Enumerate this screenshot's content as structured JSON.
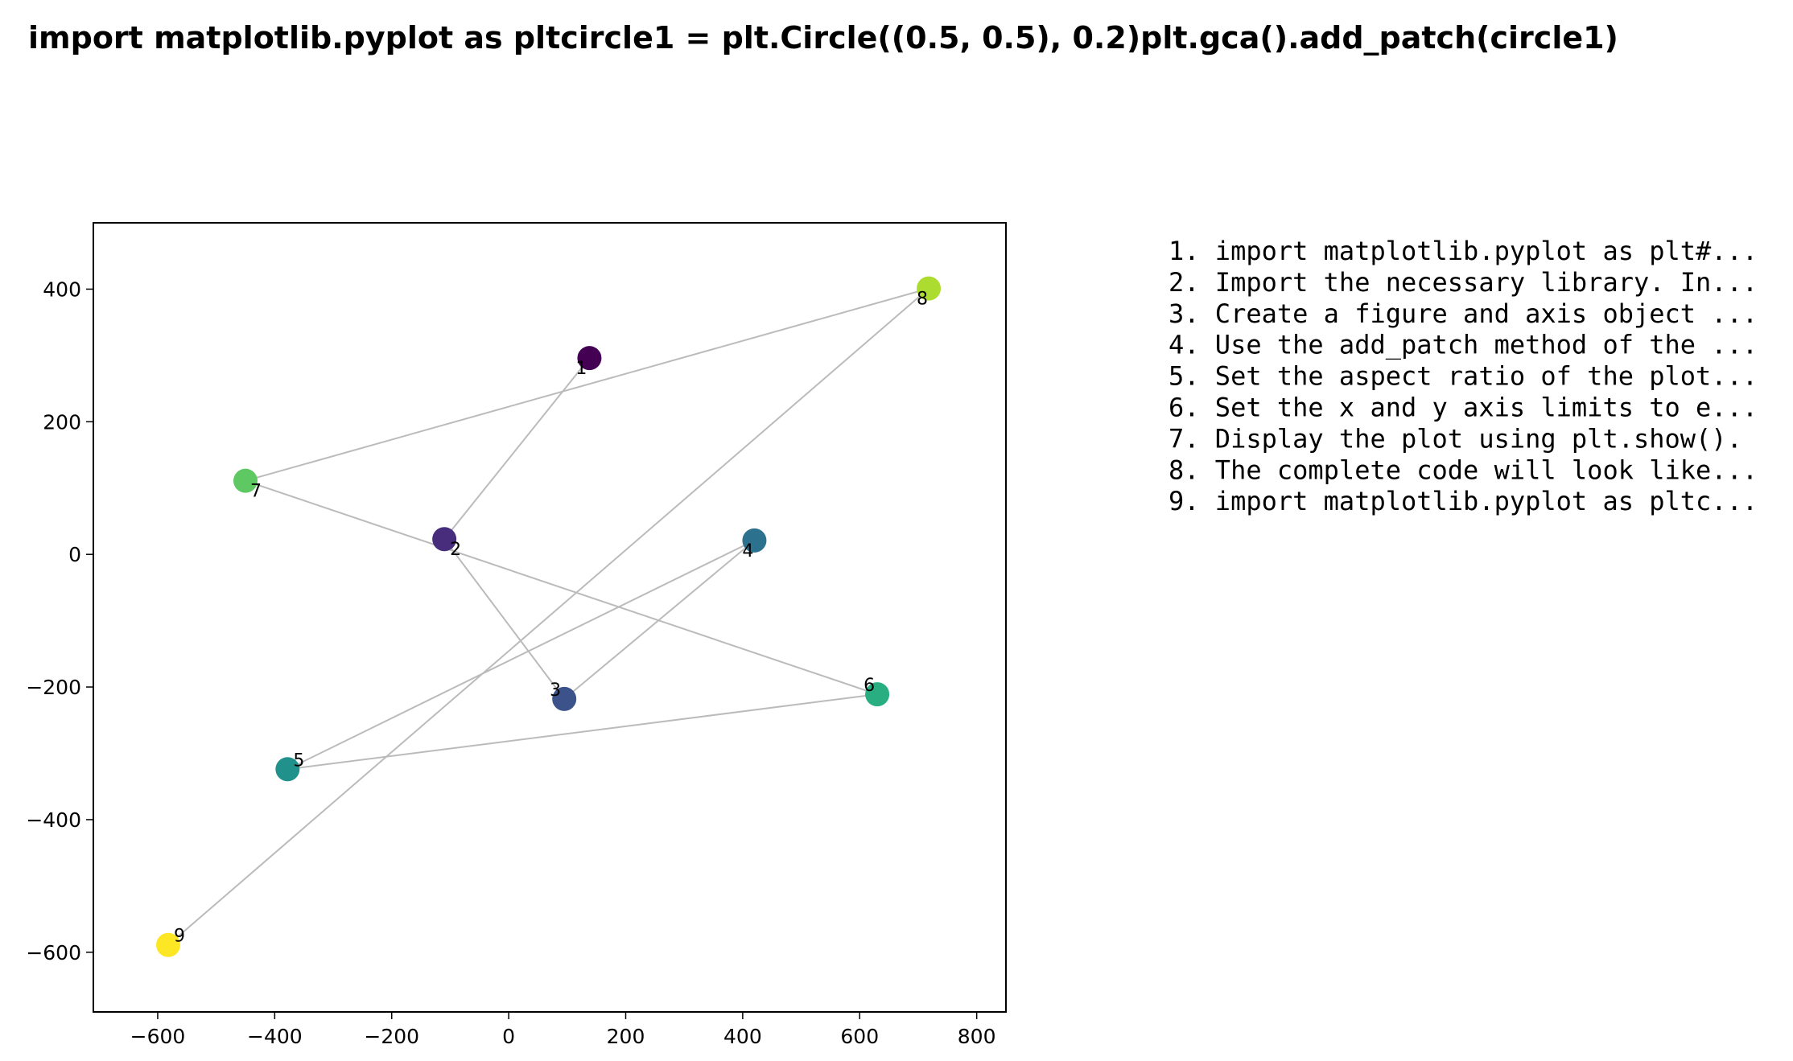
{
  "chart_data": {
    "type": "scatter",
    "title": "import matplotlib.pyplot as pltcircle1 = plt.Circle((0.5, 0.5), 0.2)plt.gca().add_patch(circle1)",
    "xlabel": "",
    "ylabel": "",
    "xlim": [
      -710,
      850
    ],
    "ylim": [
      -690,
      500
    ],
    "xticks": [
      -600,
      -400,
      -200,
      0,
      200,
      400,
      600,
      800
    ],
    "yticks": [
      400,
      200,
      0,
      -200,
      -400,
      -600
    ],
    "xtick_labels": [
      "−600",
      "−400",
      "−200",
      "0",
      "200",
      "400",
      "600",
      "800"
    ],
    "ytick_labels": [
      "400",
      "200",
      "0",
      "−200",
      "−400",
      "−600"
    ],
    "grid": false,
    "path_color": "#bbbbbb",
    "points": [
      {
        "label": "1",
        "x": 138,
        "y": 296,
        "color": "#440154"
      },
      {
        "label": "2",
        "x": -110,
        "y": 23,
        "color": "#472d7b"
      },
      {
        "label": "3",
        "x": 95,
        "y": -218,
        "color": "#3b528b"
      },
      {
        "label": "4",
        "x": 420,
        "y": 21,
        "color": "#2c728e"
      },
      {
        "label": "5",
        "x": -378,
        "y": -324,
        "color": "#21918c"
      },
      {
        "label": "6",
        "x": 630,
        "y": -211,
        "color": "#28ae80"
      },
      {
        "label": "7",
        "x": -450,
        "y": 111,
        "color": "#5ec962"
      },
      {
        "label": "8",
        "x": 718,
        "y": 401,
        "color": "#addc30"
      },
      {
        "label": "9",
        "x": -582,
        "y": -589,
        "color": "#fde725"
      }
    ],
    "steps": [
      "1. import matplotlib.pyplot as plt#...",
      "2. Import the necessary library. In...",
      "3. Create a figure and axis object ...",
      "4. Use the add_patch method of the ...",
      "5. Set the aspect ratio of the plot...",
      "6. Set the x and y axis limits to e...",
      "7. Display the plot using plt.show().",
      "8. The complete code will look like...",
      "9. import matplotlib.pyplot as pltc..."
    ]
  }
}
